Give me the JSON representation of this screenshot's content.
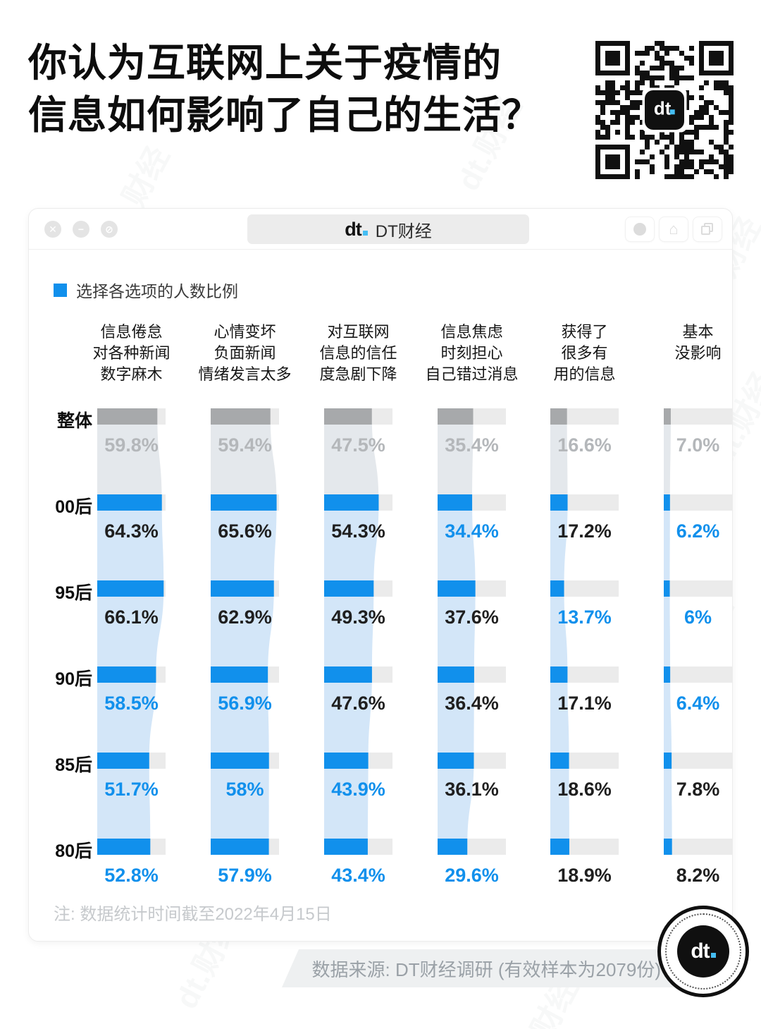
{
  "title": {
    "line1": "你认为互联网上关于疫情的",
    "line2": "信息如何影响了自己的生活？"
  },
  "window": {
    "tab_logo": "dt",
    "tab_title": "DT财经",
    "controls_left": [
      "close",
      "minimize",
      "block"
    ],
    "controls_right": [
      "record",
      "home",
      "tabs"
    ]
  },
  "legend": {
    "label": "选择各选项的人数比例",
    "color": "#1190ec"
  },
  "chart_data": {
    "type": "bar",
    "title": "选择各选项的人数比例",
    "rows": [
      "整体",
      "00后",
      "95后",
      "90后",
      "85后",
      "80后"
    ],
    "columns": [
      {
        "header": [
          "信息倦怠",
          "对各种新闻",
          "数字麻木"
        ],
        "values": [
          59.8,
          64.3,
          66.1,
          58.5,
          51.7,
          52.8
        ],
        "labels": [
          "59.8%",
          "64.3%",
          "66.1%",
          "58.5%",
          "51.7%",
          "52.8%"
        ],
        "label_styles": [
          "gray",
          "black",
          "black",
          "blue",
          "blue",
          "blue"
        ]
      },
      {
        "header": [
          "心情变坏",
          "负面新闻",
          "情绪发言太多"
        ],
        "values": [
          59.4,
          65.6,
          62.9,
          56.9,
          58,
          57.9
        ],
        "labels": [
          "59.4%",
          "65.6%",
          "62.9%",
          "56.9%",
          "58%",
          "57.9%"
        ],
        "label_styles": [
          "gray",
          "black",
          "black",
          "blue",
          "blue",
          "blue"
        ]
      },
      {
        "header": [
          "对互联网",
          "信息的信任",
          "度急剧下降"
        ],
        "values": [
          47.5,
          54.3,
          49.3,
          47.6,
          43.9,
          43.4
        ],
        "labels": [
          "47.5%",
          "54.3%",
          "49.3%",
          "47.6%",
          "43.9%",
          "43.4%"
        ],
        "label_styles": [
          "gray",
          "black",
          "black",
          "black",
          "blue",
          "blue"
        ]
      },
      {
        "header": [
          "信息焦虑",
          "时刻担心",
          "自己错过消息"
        ],
        "values": [
          35.4,
          34.4,
          37.6,
          36.4,
          36.1,
          29.6
        ],
        "labels": [
          "35.4%",
          "34.4%",
          "37.6%",
          "36.4%",
          "36.1%",
          "29.6%"
        ],
        "label_styles": [
          "gray",
          "blue",
          "black",
          "black",
          "black",
          "blue"
        ]
      },
      {
        "header": [
          "获得了",
          "很多有",
          "用的信息"
        ],
        "values": [
          16.6,
          17.2,
          13.7,
          17.1,
          18.6,
          18.9
        ],
        "labels": [
          "16.6%",
          "17.2%",
          "13.7%",
          "17.1%",
          "18.6%",
          "18.9%"
        ],
        "label_styles": [
          "gray",
          "black",
          "blue",
          "black",
          "black",
          "black"
        ]
      },
      {
        "header": [
          "基本",
          "没影响"
        ],
        "values": [
          7.0,
          6.2,
          6,
          6.4,
          7.8,
          8.2
        ],
        "labels": [
          "7.0%",
          "6.2%",
          "6%",
          "6.4%",
          "7.8%",
          "8.2%"
        ],
        "label_styles": [
          "gray",
          "blue",
          "blue",
          "blue",
          "black",
          "black"
        ]
      }
    ],
    "layout": {
      "bar_scale_max": 68,
      "grid": false,
      "legend_position": "top-left"
    },
    "colors": {
      "bar_blue": "#1190ec",
      "bar_gray": "#a7a9ab",
      "track": "#ebebeb",
      "stream_blue": "#d3e6f8",
      "stream_gray": "#e4e8ec",
      "label_blue": "#1190ec",
      "label_black": "#1f1f1f",
      "label_gray": "#b4b7ba",
      "accent_dot": "#45bdf2"
    }
  },
  "note": "注: 数据统计时间截至2022年4月15日",
  "source": "数据来源: DT财经调研 (有效样本为2079份)",
  "watermark": "dt.财经"
}
